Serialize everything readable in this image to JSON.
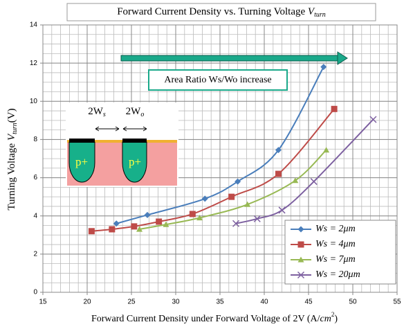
{
  "chart_data": {
    "type": "line",
    "title": {
      "text": "Forward Current  Density vs. Turning Voltage ",
      "symbol": "V",
      "subscript": "turn"
    },
    "y_label": {
      "text": "Turning Voltage ",
      "symbol": "V",
      "subscript": "turn",
      "unit": "(V)"
    },
    "x_label": {
      "text": "Forward Current Density under Forward Voltage of 2V (A/",
      "symbol": "cm",
      "superscript": "2",
      "end": ")"
    },
    "xlim": [
      15,
      55
    ],
    "xticks": [
      15,
      20,
      25,
      30,
      35,
      40,
      45,
      50,
      55
    ],
    "ylim": [
      0,
      14
    ],
    "yticks": [
      0,
      2,
      4,
      6,
      8,
      10,
      12,
      14
    ],
    "grid": true,
    "minor_grid_step": [
      1,
      0.5
    ],
    "legend": "lower right",
    "series": [
      {
        "name": "Ws = 2μm",
        "color": "#4a7ebb",
        "marker": "diamond",
        "x": [
          23.3,
          26.8,
          33.3,
          37,
          41.6,
          46.7
        ],
        "values": [
          3.6,
          4.05,
          4.9,
          5.8,
          7.45,
          11.8
        ]
      },
      {
        "name": "Ws = 4μm",
        "color": "#be4b48",
        "marker": "square",
        "x": [
          20.5,
          22.8,
          25.3,
          28.1,
          31.9,
          36.3,
          41.6,
          47.9
        ],
        "values": [
          3.2,
          3.3,
          3.45,
          3.7,
          4.1,
          5,
          6.2,
          9.6
        ]
      },
      {
        "name": "Ws = 7μm",
        "color": "#98b954",
        "marker": "triangle",
        "x": [
          25.9,
          28.9,
          32.7,
          38.1,
          43.5,
          47
        ],
        "values": [
          3.3,
          3.55,
          3.9,
          4.6,
          5.85,
          7.45
        ]
      },
      {
        "name": "Ws = 20μm",
        "color": "#7d60a0",
        "marker": "x",
        "x": [
          36.8,
          39.2,
          42,
          45.6,
          52.3
        ],
        "values": [
          3.6,
          3.85,
          4.3,
          5.8,
          9.05
        ]
      }
    ],
    "annotations": {
      "arrow_text": "Area Ratio Ws/Wo increase",
      "inset": {
        "left": {
          "text": "2W",
          "subscript": "s"
        },
        "right": {
          "text": "2W",
          "subscript": "o"
        },
        "region": "p+"
      }
    }
  }
}
